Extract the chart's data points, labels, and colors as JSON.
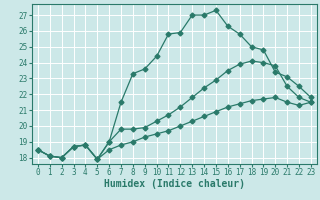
{
  "xlabel": "Humidex (Indice chaleur)",
  "bg_color": "#cce8e8",
  "grid_color": "#ffffff",
  "line_color": "#2a7a6a",
  "xlim": [
    -0.5,
    23.5
  ],
  "ylim": [
    17.6,
    27.7
  ],
  "xticks": [
    0,
    1,
    2,
    3,
    4,
    5,
    6,
    7,
    8,
    9,
    10,
    11,
    12,
    13,
    14,
    15,
    16,
    17,
    18,
    19,
    20,
    21,
    22,
    23
  ],
  "yticks": [
    18,
    19,
    20,
    21,
    22,
    23,
    24,
    25,
    26,
    27
  ],
  "line1_x": [
    0,
    1,
    2,
    3,
    4,
    5,
    6,
    7,
    8,
    9,
    10,
    11,
    12,
    13,
    14,
    15,
    16,
    17,
    18,
    19,
    20,
    21,
    22,
    23
  ],
  "line1_y": [
    18.5,
    18.1,
    18.0,
    18.7,
    18.8,
    17.9,
    19.0,
    21.5,
    23.3,
    23.6,
    24.4,
    25.8,
    25.9,
    27.0,
    27.0,
    27.3,
    26.3,
    25.8,
    25.0,
    24.8,
    23.4,
    23.1,
    22.5,
    21.8
  ],
  "line2_x": [
    0,
    1,
    2,
    3,
    4,
    5,
    6,
    7,
    8,
    9,
    10,
    11,
    12,
    13,
    14,
    15,
    16,
    17,
    18,
    19,
    20,
    21,
    22,
    23
  ],
  "line2_y": [
    18.5,
    18.1,
    18.0,
    18.7,
    18.8,
    17.9,
    19.0,
    19.8,
    19.8,
    19.9,
    20.3,
    20.7,
    21.2,
    21.8,
    22.4,
    22.9,
    23.5,
    23.9,
    24.1,
    24.0,
    23.8,
    22.5,
    21.8,
    21.5
  ],
  "line3_x": [
    0,
    1,
    2,
    3,
    4,
    5,
    6,
    7,
    8,
    9,
    10,
    11,
    12,
    13,
    14,
    15,
    16,
    17,
    18,
    19,
    20,
    21,
    22,
    23
  ],
  "line3_y": [
    18.5,
    18.1,
    18.0,
    18.7,
    18.8,
    17.9,
    18.5,
    18.8,
    19.0,
    19.3,
    19.5,
    19.7,
    20.0,
    20.3,
    20.6,
    20.9,
    21.2,
    21.4,
    21.6,
    21.7,
    21.8,
    21.5,
    21.3,
    21.5
  ],
  "tick_fontsize": 5.5,
  "xlabel_fontsize": 7,
  "marker_size": 2.5,
  "linewidth": 0.9
}
